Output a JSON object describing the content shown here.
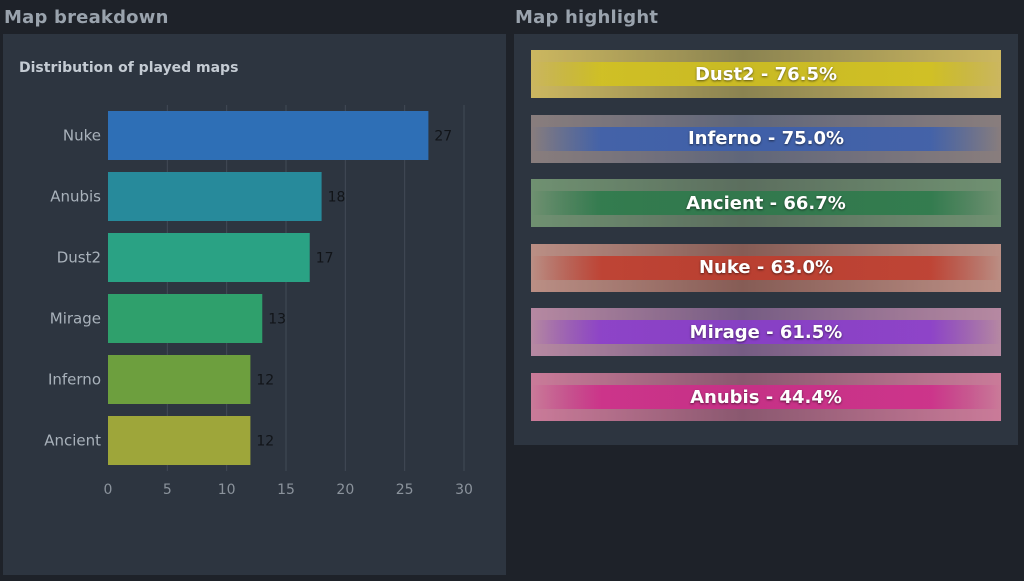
{
  "left_section": {
    "title": "Map breakdown"
  },
  "right_section": {
    "title": "Map highlight"
  },
  "chart_data": {
    "type": "bar",
    "orientation": "horizontal",
    "title": "Distribution of played maps",
    "categories": [
      "Nuke",
      "Anubis",
      "Dust2",
      "Mirage",
      "Inferno",
      "Ancient"
    ],
    "values": [
      27,
      18,
      17,
      13,
      12,
      12
    ],
    "colors": [
      "#2e6fb6",
      "#278a9b",
      "#2aa284",
      "#2fa06c",
      "#6d9f3e",
      "#9ea63a"
    ],
    "xticks": [
      0,
      5,
      10,
      15,
      20,
      25,
      30
    ],
    "xlim": [
      0,
      30
    ],
    "grid": true,
    "xlabel": "",
    "ylabel": ""
  },
  "highlights": [
    {
      "map": "Dust2",
      "label": "Dust2 - 76.5%",
      "color": "#d4c41c",
      "bg": "#c9b27a"
    },
    {
      "map": "Inferno",
      "label": "Inferno - 75.0%",
      "color": "#3a5fb0",
      "bg": "#a88a6a"
    },
    {
      "map": "Ancient",
      "label": "Ancient - 66.7%",
      "color": "#2a7a4a",
      "bg": "#8a9a80"
    },
    {
      "map": "Nuke",
      "label": "Nuke - 63.0%",
      "color": "#c23a2a",
      "bg": "#b8b0a8"
    },
    {
      "map": "Mirage",
      "label": "Mirage - 61.5%",
      "color": "#8a3ad0",
      "bg": "#c8a890"
    },
    {
      "map": "Anubis",
      "label": "Anubis - 44.4%",
      "color": "#d02a8a",
      "bg": "#c89aa0"
    }
  ]
}
